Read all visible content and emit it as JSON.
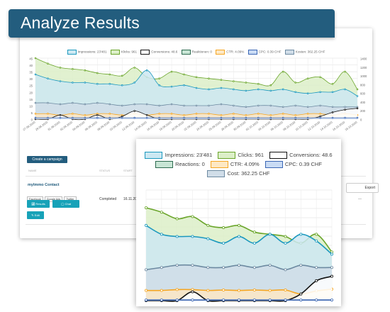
{
  "banner": {
    "title": "Analyze Results"
  },
  "legend": [
    {
      "label": "Impressions: 23'481",
      "short": "Impressions: 23'481",
      "color": "#1b98be",
      "fill": "#cce8f2"
    },
    {
      "label": "Clicks: 961",
      "short": "Klicks: 961",
      "color": "#6aa52a",
      "fill": "#dcefc8"
    },
    {
      "label": "Conversions: 48.6",
      "short": "Conversions: 48.6",
      "color": "#111111",
      "fill": "#ffffff"
    },
    {
      "label": "Reactions: 0",
      "short": "Reaktionen: 0",
      "color": "#2d6a4f",
      "fill": "#c8e5d5"
    },
    {
      "label": "CTR: 4.09%",
      "short": "CTR: 4.09%",
      "color": "#f5a623",
      "fill": "#fde8c4"
    },
    {
      "label": "CPC: 0.39 CHF",
      "short": "CPC: 0.39 CHF",
      "color": "#3a66b4",
      "fill": "#c9dbf4"
    },
    {
      "label": "Cost: 362.25 CHF",
      "short": "Kosten: 362.25 CHF",
      "color": "#6d8aa1",
      "fill": "#d0dde8"
    }
  ],
  "overview": {
    "y_left_ticks": [
      "45",
      "40",
      "35",
      "30",
      "25",
      "20",
      "15",
      "10",
      "5",
      "0"
    ],
    "y_right_ticks": [
      "1400",
      "1200",
      "1000",
      "800",
      "600",
      "400",
      "200",
      "0"
    ],
    "x_ticks": [
      "27.08.2020",
      "29.08.2020",
      "31.08.2020",
      "02.09.2020",
      "04.09.2020",
      "06.09.2020",
      "08.09.2020",
      "10.09.2020",
      "12.09.2020",
      "14.09.2020",
      "16.09.2020",
      "18.09.2020",
      "20.09.2020",
      "22.09.2020",
      "24.09.2020",
      "26.09.2020",
      "28.09.2020",
      "30.09.2020",
      "02.10.2020",
      "04.10.2020",
      "06.10.2020",
      "08.10.2020",
      "10.10.2020",
      "12.10.2020",
      "14.10.2020",
      "16.10.2020",
      "18.10.2020"
    ]
  },
  "campaigns": {
    "create_label": "Create a campaign",
    "headers": {
      "name": "NAME",
      "status": "STATUS",
      "start": "START"
    },
    "export_label": "Export",
    "row": {
      "name": "myImmo Contact",
      "chips": [
        "Facebook",
        "Google Ads",
        "Twitter"
      ],
      "results_label": "Results",
      "chat_label": "Chat",
      "edit_label": "Edit",
      "status": "Completed",
      "date": "16.11.20",
      "dash": "—"
    }
  },
  "chart_data": {
    "type": "area",
    "x": [
      1,
      2,
      3,
      4,
      5,
      6,
      7,
      8,
      9,
      10,
      11,
      12,
      13,
      14,
      15,
      16,
      17,
      18,
      19,
      20,
      21,
      22,
      23,
      24,
      25,
      26,
      27
    ],
    "series": [
      {
        "name": "Clicks: 961",
        "values": [
          45,
          41,
          38,
          37,
          36,
          34,
          33,
          32,
          38,
          31,
          30,
          35,
          33,
          31,
          30,
          29,
          28,
          27,
          26,
          25,
          35,
          27,
          30,
          31,
          26,
          35,
          22
        ]
      },
      {
        "name": "Impressions: 23'481",
        "values": [
          33,
          30,
          28,
          27,
          27,
          26,
          26,
          25,
          27,
          36,
          25,
          24,
          25,
          23,
          22,
          23,
          22,
          21,
          22,
          21,
          22,
          20,
          19,
          20,
          20,
          22,
          17
        ]
      },
      {
        "name": "Cost: 362.25 CHF",
        "values": [
          12,
          12,
          11,
          12,
          11,
          12,
          11,
          10,
          11,
          11,
          10,
          11,
          10,
          10,
          10,
          11,
          10,
          9,
          10,
          10,
          9,
          10,
          9,
          10,
          9,
          9,
          9
        ]
      },
      {
        "name": "CTR: 4.09%",
        "values": [
          4,
          4,
          3,
          4,
          3,
          4,
          4,
          3,
          4,
          3,
          4,
          4,
          3,
          4,
          4,
          3,
          4,
          3,
          4,
          3,
          4,
          3,
          4,
          4,
          3,
          4,
          3
        ]
      },
      {
        "name": "Conversions: 48.6",
        "values": [
          0,
          0,
          3,
          0,
          0,
          3,
          0,
          2,
          6,
          3,
          0,
          0,
          0,
          0,
          0,
          0,
          0,
          0,
          0,
          0,
          0,
          0,
          0,
          2,
          5,
          7,
          8
        ]
      },
      {
        "name": "CPC: 0.39 CHF",
        "values": [
          1,
          1,
          1,
          1,
          1,
          1,
          1,
          1,
          1,
          1,
          1,
          1,
          1,
          1,
          1,
          1,
          1,
          1,
          1,
          1,
          1,
          1,
          1,
          1,
          1,
          1,
          1
        ]
      }
    ],
    "ylim": [
      0,
      45
    ],
    "zoom_series": [
      {
        "name": "Clicks: 961",
        "values": [
          42,
          40,
          37,
          38,
          34,
          33,
          34,
          31,
          30,
          29,
          26,
          30,
          22
        ]
      },
      {
        "name": "Impressions: 23'481",
        "values": [
          34,
          30,
          29,
          29,
          28,
          26,
          29,
          26,
          30,
          26,
          30,
          27,
          21
        ]
      },
      {
        "name": "Cost: 362.25 CHF",
        "values": [
          14,
          15,
          16,
          16,
          15,
          15,
          16,
          15,
          16,
          14,
          16,
          15,
          15
        ]
      },
      {
        "name": "CTR: 4.09%",
        "values": [
          4.6,
          4.6,
          5,
          5,
          4.6,
          4.8,
          4.6,
          4.8,
          4.6,
          4.8,
          3,
          4.4,
          5.2
        ]
      },
      {
        "name": "Conversions: 48.6",
        "values": [
          0,
          0,
          0,
          4,
          0,
          0,
          0,
          0,
          0,
          0,
          3,
          9,
          11
        ]
      },
      {
        "name": "CPC: 0.39 CHF",
        "values": [
          0.3,
          0.3,
          0.3,
          0.3,
          0.3,
          0.3,
          0.3,
          0.3,
          0.3,
          0.3,
          0.3,
          0.3,
          0.3
        ]
      }
    ],
    "zoom_ylim": [
      0,
      50
    ]
  }
}
